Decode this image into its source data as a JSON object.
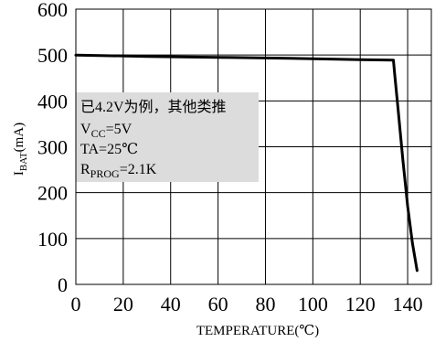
{
  "chart_data": {
    "type": "line",
    "title": "",
    "xlabel": "TEMPERATURE(℃)",
    "ylabel": {
      "main": "I",
      "sub": "BAT",
      "unit": "(mA)"
    },
    "xlim": [
      0,
      150
    ],
    "ylim": [
      0,
      600
    ],
    "x_ticks": [
      0,
      20,
      40,
      60,
      80,
      100,
      120,
      140
    ],
    "y_ticks": [
      0,
      100,
      200,
      300,
      400,
      500,
      600
    ],
    "grid": true,
    "series": [
      {
        "color": "#000000",
        "points": [
          [
            0,
            500
          ],
          [
            10,
            499
          ],
          [
            30,
            497
          ],
          [
            60,
            495
          ],
          [
            90,
            493
          ],
          [
            120,
            490
          ],
          [
            134,
            489
          ],
          [
            134.5,
            460
          ],
          [
            136,
            380
          ],
          [
            138,
            270
          ],
          [
            140,
            170
          ],
          [
            142,
            90
          ],
          [
            144,
            30
          ]
        ]
      }
    ],
    "annotation_lines": [
      {
        "text": "已4.2V为例，其他类推"
      },
      {
        "main": "V",
        "sub": "CC",
        "rest": "=5V"
      },
      {
        "text": "TA=25℃"
      },
      {
        "main": "R",
        "sub": "PROG",
        "rest": "=2.1K"
      }
    ],
    "annotation_box_color": "#dcdcdc"
  }
}
